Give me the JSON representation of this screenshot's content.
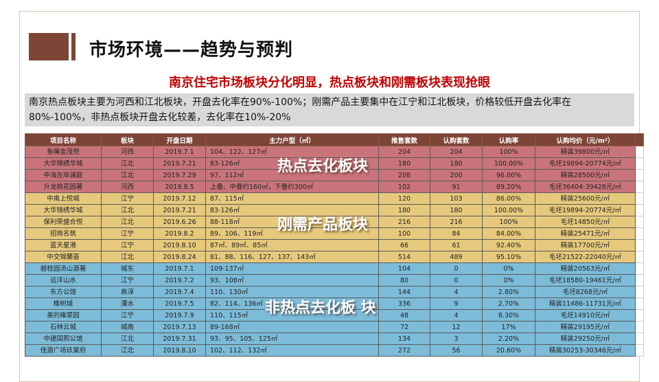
{
  "title": "市场环境——趋势与预判",
  "subtitle": "南京住宅市场板块分化明显，热点板块和刚需板块表现抢眼",
  "description": "南京热点板块主要为河西和江北板块，开盘去化率在90%-100%；刚需产品主要集中在江宁和江北板块，价格较低开盘去化率在80%-100%，非热点板块开盘去化较差，去化率在10%-20%",
  "overlays": {
    "hot": "热点去化板块",
    "rigid": "刚需产品板块",
    "cold": "非热点去化板 块"
  },
  "table": {
    "headers": [
      "项目名称",
      "板块",
      "开盘日期",
      "主力户型（㎡）",
      "推售套数",
      "认购套数",
      "认购率",
      "认购均价（元/m²）"
    ],
    "rows": [
      {
        "g": "hot",
        "c": [
          "鱼嘴金茂悦",
          "河西",
          "2019.7.1",
          "104、122、127㎡",
          "204",
          "204",
          "100%",
          "精装39800元/㎡"
        ]
      },
      {
        "g": "hot",
        "c": [
          "大华锦绣华城",
          "江北",
          "2019.7.21",
          "83-126㎡",
          "180",
          "180",
          "100.00%",
          "毛坯19894-20774元/㎡"
        ]
      },
      {
        "g": "hot",
        "c": [
          "中海左岸澜庭",
          "江北",
          "2019.7.29",
          "97、112㎡",
          "208",
          "200",
          "96.00%",
          "精装28500元/㎡"
        ]
      },
      {
        "g": "hot",
        "c": [
          "升龙桃花园著",
          "河西",
          "2019.8.5",
          "上叠、中叠约160㎡，下叠约300㎡",
          "102",
          "91",
          "89.20%",
          "毛坯36404-39428元/㎡"
        ]
      },
      {
        "g": "rig",
        "c": [
          "中南上悦城",
          "江宁",
          "2019.7.12",
          "87、115㎡",
          "120",
          "103",
          "86.00%",
          "精装25600元/㎡"
        ]
      },
      {
        "g": "rig",
        "c": [
          "大华锦绣华城",
          "江北",
          "2019.7.21",
          "83-126㎡",
          "180",
          "180",
          "100.00%",
          "毛坯19894-20774元/㎡"
        ]
      },
      {
        "g": "rig",
        "c": [
          "保利荣盛合悦",
          "江北",
          "2019.6.26",
          "88-118㎡",
          "216",
          "216",
          "100%",
          "毛坯14850元/㎡"
        ]
      },
      {
        "g": "rig",
        "c": [
          "招商名筑",
          "江宁",
          "2019.8.2",
          "89、106、119㎡",
          "100",
          "84",
          "84.00%",
          "精装25471元/㎡"
        ]
      },
      {
        "g": "rig",
        "c": [
          "蓝天星港",
          "江宁",
          "2019.8.10",
          "87㎡、89㎡、85㎡",
          "66",
          "61",
          "92.40%",
          "精装17700元/㎡"
        ]
      },
      {
        "g": "rig",
        "c": [
          "中交锦蘭荟",
          "江北",
          "2019.8.24",
          "81、88、116、127、137、143㎡",
          "514",
          "489",
          "95.10%",
          "毛坯21522-22040元/㎡"
        ]
      },
      {
        "g": "cold",
        "c": [
          "碧桂园汤山源著",
          "城东",
          "2019.7.1",
          "109-137㎡",
          "104",
          "0",
          "0%",
          "精装20563元/㎡"
        ]
      },
      {
        "g": "cold",
        "c": [
          "远洋山水",
          "江宁",
          "2019.7.2",
          "93、108㎡",
          "80",
          "0",
          "0%",
          "毛坯18580-19461元/㎡"
        ]
      },
      {
        "g": "cold",
        "c": [
          "东方公馆",
          "高淳",
          "2019.7.4",
          "110、130㎡",
          "144",
          "4",
          "2.80%",
          "毛坯8268元/㎡"
        ]
      },
      {
        "g": "cold",
        "c": [
          "橡树城",
          "溧水",
          "2019.7.5",
          "82、114、136㎡",
          "336",
          "9",
          "2.70%",
          "精装11486-11731元/㎡"
        ]
      },
      {
        "g": "cold",
        "c": [
          "美的雍翠园",
          "江宁",
          "2019.7.9",
          "110、115㎡",
          "48",
          "4",
          "8.30%",
          "毛坯14910元/㎡"
        ]
      },
      {
        "g": "cold",
        "c": [
          "石林云城",
          "城南",
          "2019.7.13",
          "89-168㎡",
          "72",
          "12",
          "17%",
          "精装29195元/㎡"
        ]
      },
      {
        "g": "cold",
        "c": [
          "中建国熙公馆",
          "江北",
          "2019.7.31",
          "93、95、105、125㎡",
          "134",
          "3",
          "2.20%",
          "精装29250元/㎡"
        ]
      },
      {
        "g": "cold",
        "c": [
          "佳源广场玖棠府",
          "江北",
          "2019.8.10",
          "102、112、132㎡",
          "272",
          "56",
          "20.60%",
          "精装30253-30346元/㎡"
        ]
      }
    ]
  },
  "colors": {
    "header": "#7d4536",
    "hot": "#c9747a",
    "rigid": "#e6c97c",
    "cold": "#7cbcd9",
    "subtitle": "#c00000"
  }
}
